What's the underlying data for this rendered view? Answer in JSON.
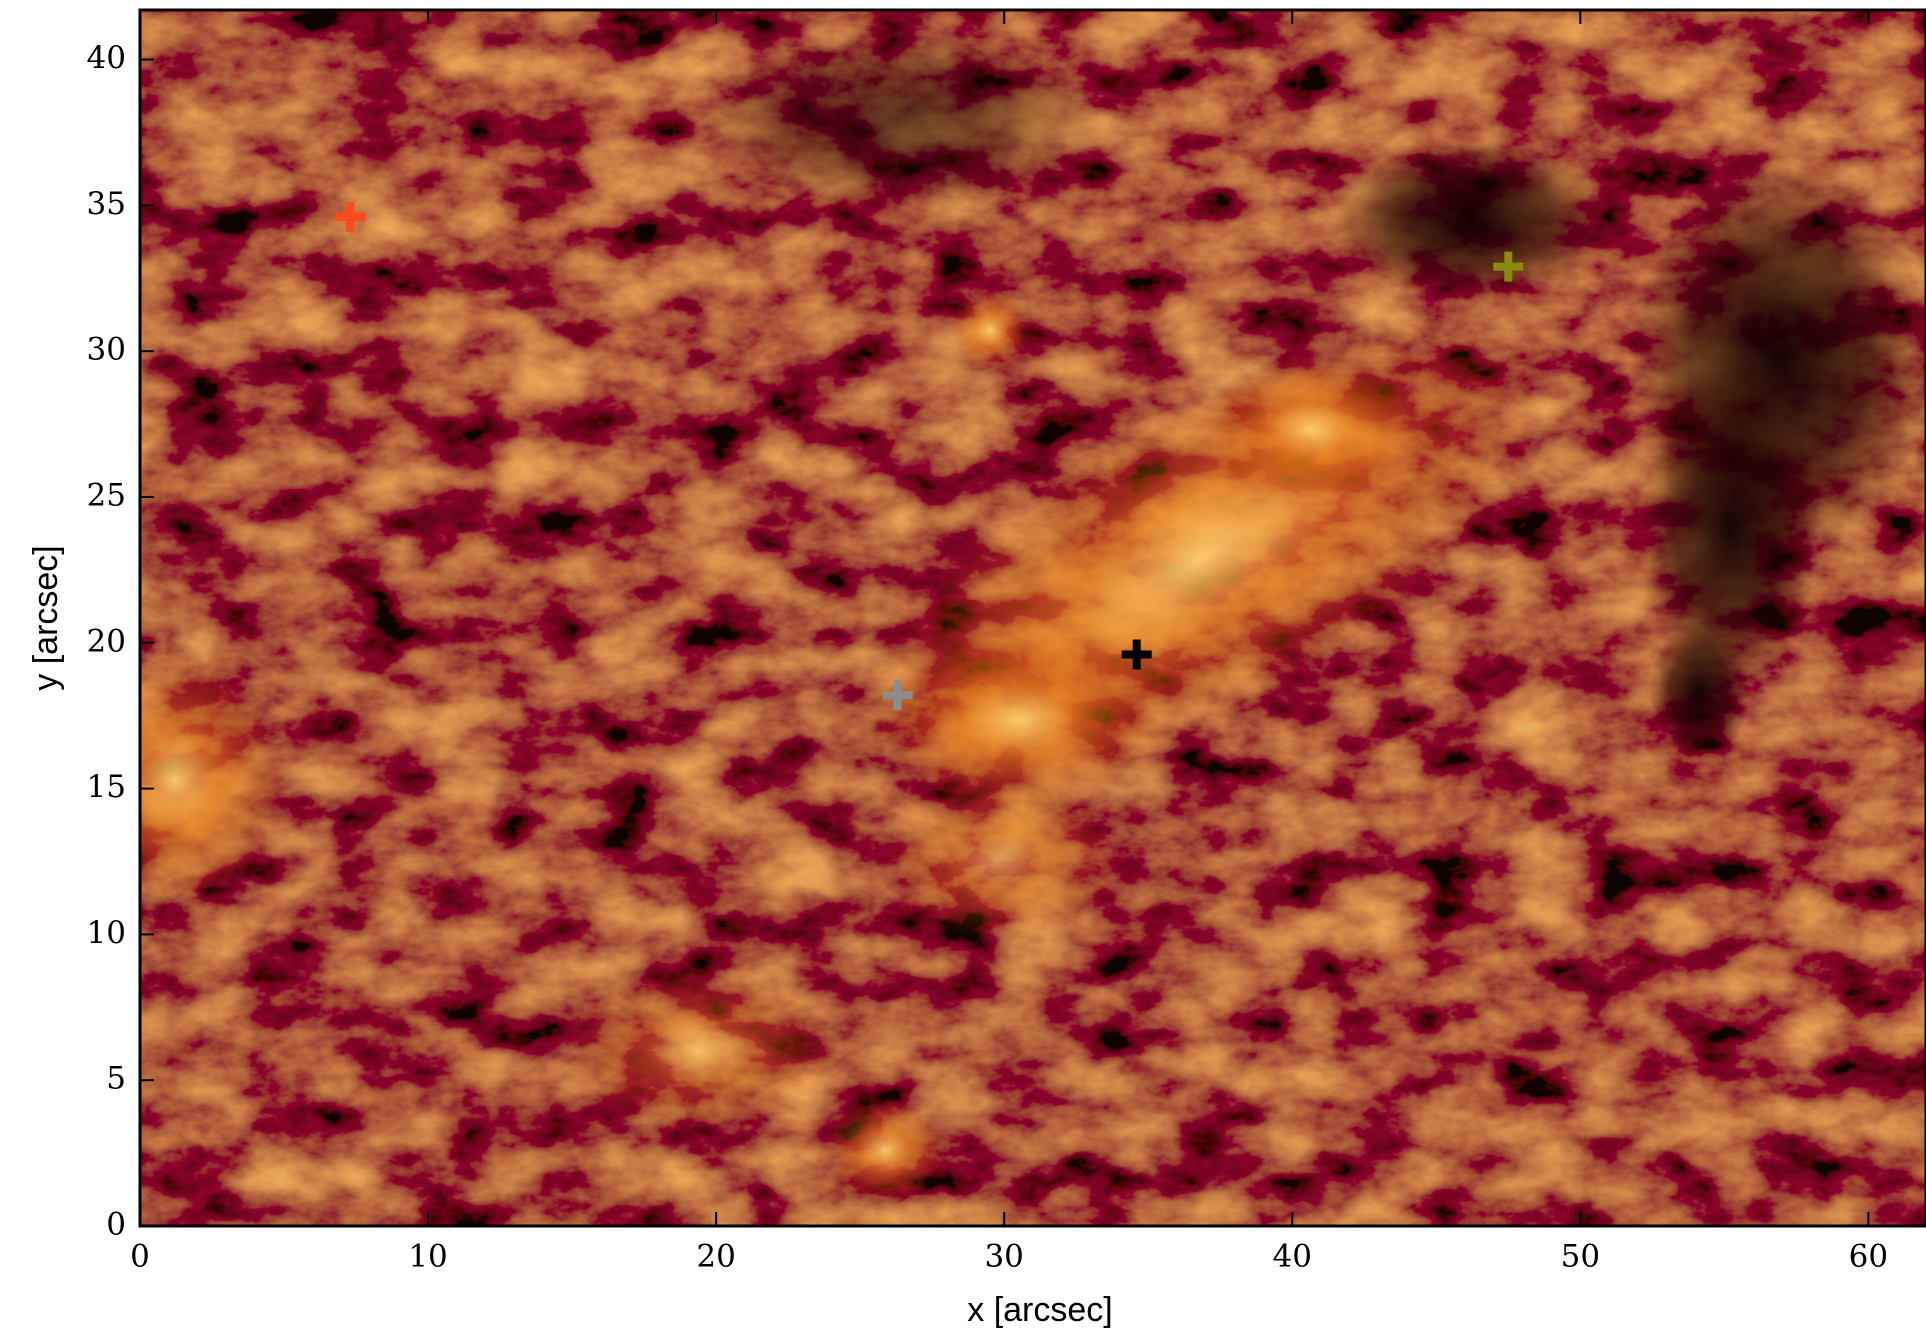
{
  "chart_data": {
    "type": "scatter",
    "xlabel": "x [arcsec]",
    "ylabel": "y [arcsec]",
    "xlim": [
      0,
      62
    ],
    "ylim": [
      0,
      41.7
    ],
    "xticks": [
      0,
      10,
      20,
      30,
      40,
      50,
      60
    ],
    "yticks": [
      0,
      5,
      10,
      15,
      20,
      25,
      30,
      35,
      40
    ],
    "series": [
      {
        "color": "#ff4a1a",
        "x": [
          7.3
        ],
        "values": [
          34.6
        ]
      },
      {
        "color": "#8a8a10",
        "x": [
          47.5
        ],
        "values": [
          32.9
        ]
      },
      {
        "color": "#8c8c8c",
        "x": [
          26.3
        ],
        "values": [
          18.2
        ]
      },
      {
        "color": "#000000",
        "x": [
          34.6
        ],
        "values": [
          19.6
        ]
      }
    ]
  }
}
